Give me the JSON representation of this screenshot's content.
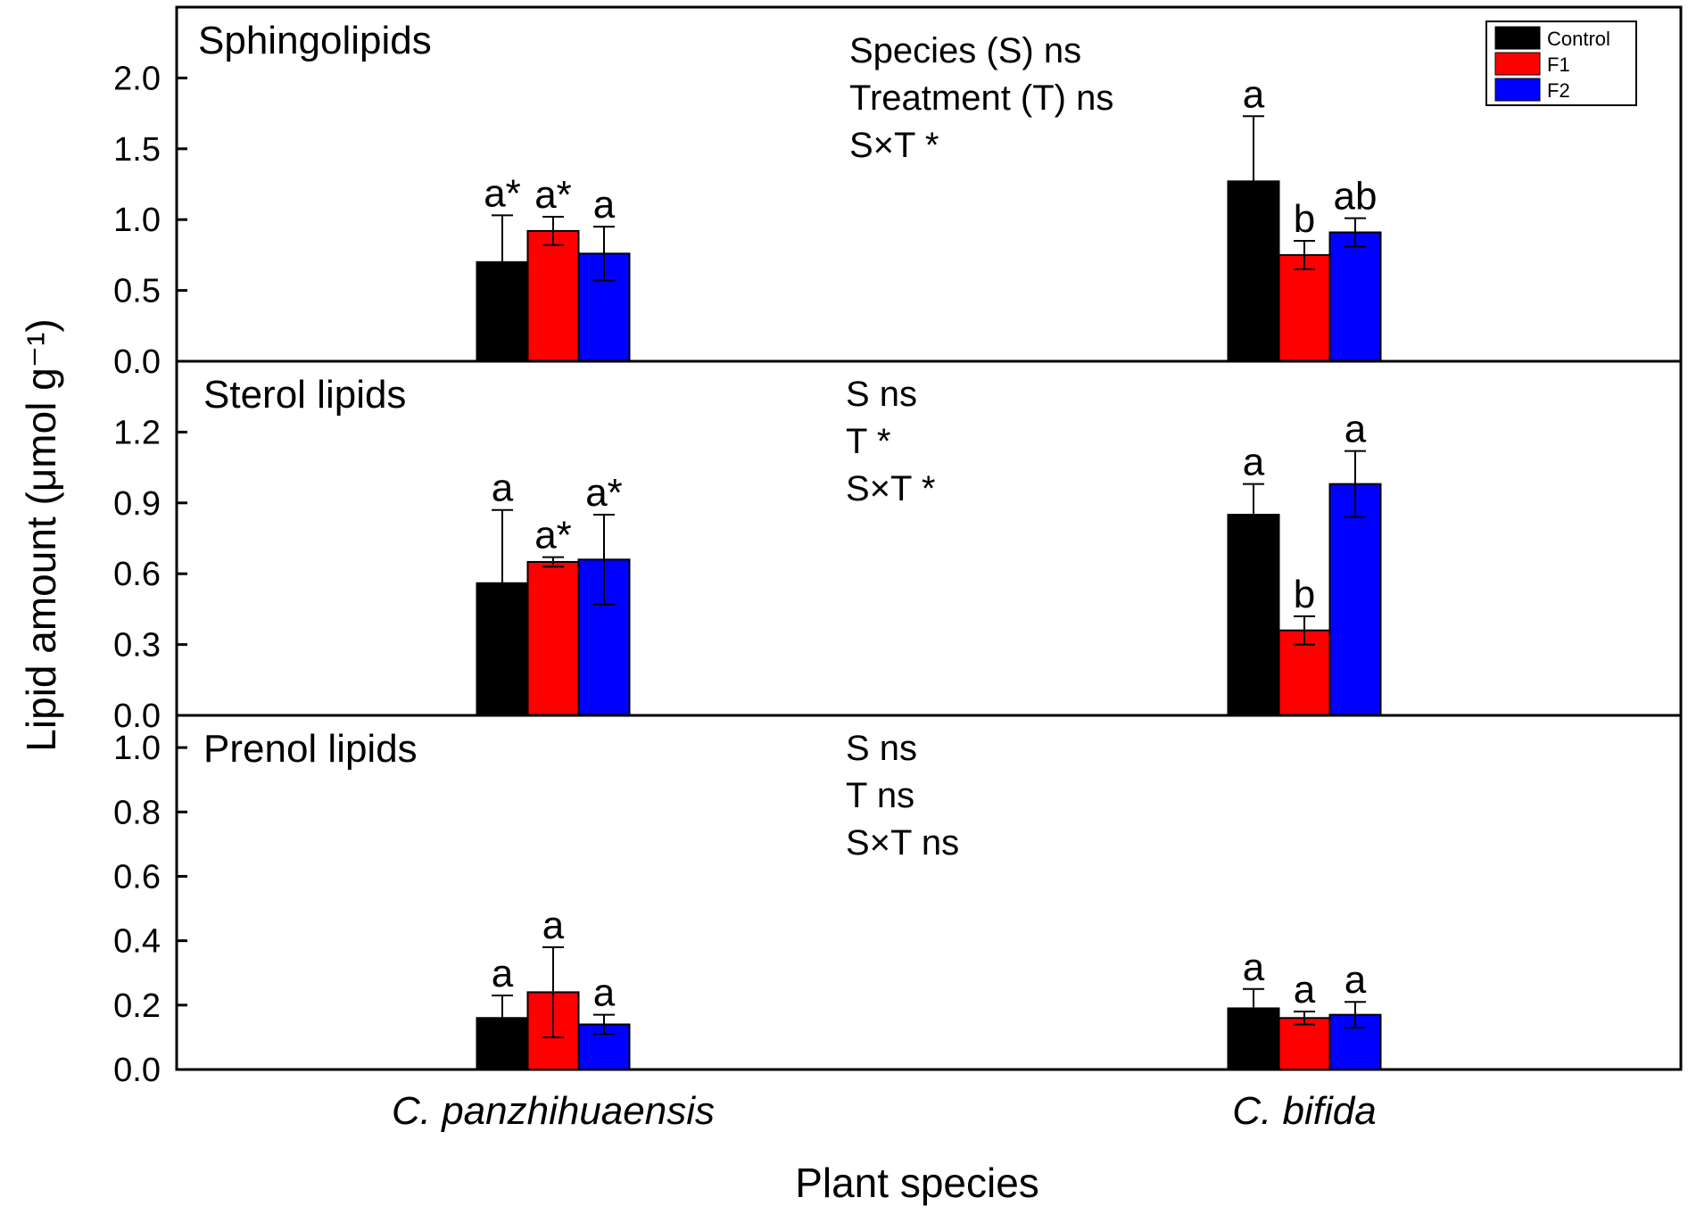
{
  "chart_data": {
    "type": "bar",
    "xlabel": "Plant species",
    "ylabel": "Lipid amount (μmol g⁻¹)",
    "categories": [
      "C. panzhihuaensis",
      "C. bifida"
    ],
    "legend": {
      "position": "top-right",
      "entries": [
        {
          "name": "Control",
          "color": "#000000"
        },
        {
          "name": "F1",
          "color": "#ff0000"
        },
        {
          "name": "F2",
          "color": "#0000ff"
        }
      ]
    },
    "panels": [
      {
        "title": "Sphingolipids",
        "ylim": [
          0,
          2.5
        ],
        "yticks": [
          0.0,
          0.5,
          1.0,
          1.5,
          2.0
        ],
        "tick_format": "0.0",
        "stats": [
          "Species (S) ns",
          "Treatment (T) ns",
          "S×T *"
        ],
        "series": [
          {
            "name": "Control",
            "values": [
              0.7,
              1.27
            ],
            "errors": [
              0.33,
              0.46
            ],
            "labels": [
              "a*",
              "a"
            ]
          },
          {
            "name": "F1",
            "values": [
              0.92,
              0.75
            ],
            "errors": [
              0.1,
              0.1
            ],
            "labels": [
              "a*",
              "b"
            ]
          },
          {
            "name": "F2",
            "values": [
              0.76,
              0.91
            ],
            "errors": [
              0.19,
              0.1
            ],
            "labels": [
              "a",
              "ab"
            ]
          }
        ]
      },
      {
        "title": "Sterol lipids",
        "ylim": [
          0,
          1.5
        ],
        "yticks": [
          0.0,
          0.3,
          0.6,
          0.9,
          1.2
        ],
        "tick_format": "0.0",
        "stats": [
          "S ns",
          "T *",
          "S×T *"
        ],
        "series": [
          {
            "name": "Control",
            "values": [
              0.56,
              0.85
            ],
            "errors": [
              0.31,
              0.13
            ],
            "labels": [
              "a",
              "a"
            ]
          },
          {
            "name": "F1",
            "values": [
              0.65,
              0.36
            ],
            "errors": [
              0.02,
              0.06
            ],
            "labels": [
              "a*",
              "b"
            ]
          },
          {
            "name": "F2",
            "values": [
              0.66,
              0.98
            ],
            "errors": [
              0.19,
              0.14
            ],
            "labels": [
              "a*",
              "a"
            ]
          }
        ]
      },
      {
        "title": "Prenol lipids",
        "ylim": [
          0,
          1.1
        ],
        "yticks": [
          0.0,
          0.2,
          0.4,
          0.6,
          0.8,
          1.0
        ],
        "tick_format": "0.0",
        "stats": [
          "S ns",
          "T ns",
          "S×T ns"
        ],
        "series": [
          {
            "name": "Control",
            "values": [
              0.16,
              0.19
            ],
            "errors": [
              0.07,
              0.06
            ],
            "labels": [
              "a",
              "a"
            ]
          },
          {
            "name": "F1",
            "values": [
              0.24,
              0.16
            ],
            "errors": [
              0.14,
              0.02
            ],
            "labels": [
              "a",
              "a"
            ]
          },
          {
            "name": "F2",
            "values": [
              0.14,
              0.17
            ],
            "errors": [
              0.03,
              0.04
            ],
            "labels": [
              "a",
              "a"
            ]
          }
        ]
      }
    ]
  }
}
